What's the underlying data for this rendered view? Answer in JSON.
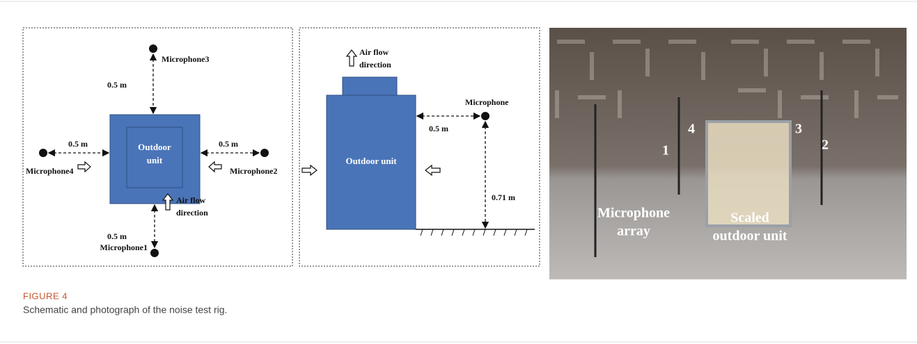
{
  "figure": {
    "label": "FIGURE 4",
    "caption": "Schematic and photograph of the noise test rig."
  },
  "top_view": {
    "unit_label": [
      "Outdoor",
      "unit"
    ],
    "microphones": {
      "top": "Microphone3",
      "right": "Microphone2",
      "left": "Microphone4",
      "bottom": "Microphone1"
    },
    "distances": {
      "top": "0.5 m",
      "left": "0.5 m",
      "right": "0.5 m",
      "bottom": "0.5 m"
    },
    "airflow": [
      "Air flow",
      "direction"
    ]
  },
  "side_view": {
    "airflow": [
      "Air flow",
      "direction"
    ],
    "unit_label": "Outdoor unit",
    "microphone": "Microphone",
    "horizontal_distance": "0.5 m",
    "height": "0.71 m"
  },
  "photo": {
    "mic_numbers": [
      "1",
      "2",
      "3",
      "4"
    ],
    "array_label": [
      "Microphone",
      "array"
    ],
    "unit_label": [
      "Scaled",
      "outdoor unit"
    ]
  }
}
